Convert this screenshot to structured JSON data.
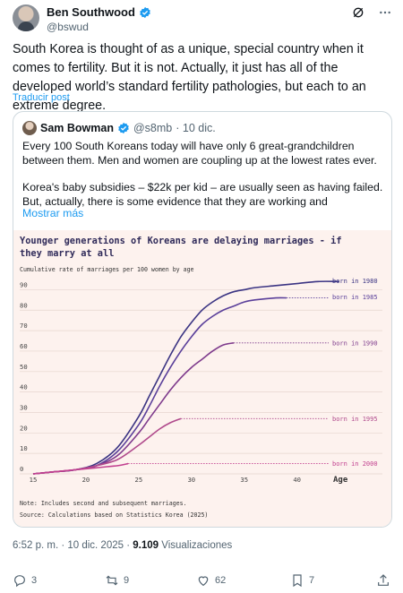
{
  "author": {
    "name": "Ben Southwood",
    "handle": "@bswud"
  },
  "header_icons": [
    "grok-icon",
    "more-icon"
  ],
  "tweet": {
    "text": "South Korea is thought of as a unique, special country when it comes to fertility. But it is not. Actually, it just has all of the developed world’s standard fertility pathologies, but each to an extreme degree.",
    "translate_label": "Traducir post"
  },
  "quote": {
    "name": "Sam Bowman",
    "handle": "@s8mb",
    "date": "· 10 dic.",
    "paragraph1": "Every 100 South Koreans today will have only 6 great-grandchildren between them. Men and women are coupling up at the lowest rates ever.",
    "paragraph2": "Korea's baby subsidies – $22k per kid – are usually seen as having failed. But, actually, there is some evidence that they are working and",
    "show_more": "Mostrar más"
  },
  "chart_data": {
    "type": "line",
    "title_line1": "Younger generations of Koreans are delaying marriages - if",
    "title_line2": "they marry at all",
    "subtitle": "Cumulative rate of marriages per 100 women by age",
    "xlabel": "Age",
    "xlim": [
      15,
      43
    ],
    "ylim": [
      0,
      95
    ],
    "xticks": [
      15,
      20,
      25,
      30,
      35,
      40
    ],
    "yticks": [
      0,
      10,
      20,
      30,
      40,
      50,
      60,
      70,
      80,
      90
    ],
    "note": "Note: Includes second and subsequent marriages.",
    "source": "Source: Calculations based on Statistics Korea (2025)",
    "series": [
      {
        "name": "born in 1980",
        "color": "#3b3483",
        "x": [
          15,
          17,
          19,
          21,
          23,
          25,
          26,
          27,
          28,
          29,
          30,
          31,
          32,
          33,
          34,
          35,
          36,
          38,
          40,
          42,
          44
        ],
        "y": [
          0,
          1,
          2,
          5,
          13,
          28,
          38,
          48,
          58,
          67,
          74,
          80,
          84,
          87,
          89,
          90,
          91,
          92,
          93,
          94,
          94
        ]
      },
      {
        "name": "born in 1985",
        "color": "#5a3f9a",
        "x": [
          15,
          17,
          19,
          21,
          23,
          25,
          26,
          27,
          28,
          29,
          30,
          31,
          32,
          33,
          34,
          35,
          36,
          38,
          39
        ],
        "y": [
          0,
          1,
          2,
          4,
          11,
          24,
          33,
          43,
          52,
          60,
          67,
          73,
          77,
          80,
          82,
          84,
          85,
          86,
          86
        ]
      },
      {
        "name": "born in 1990",
        "color": "#7e3a8c",
        "x": [
          15,
          17,
          19,
          21,
          23,
          25,
          26,
          27,
          28,
          29,
          30,
          31,
          32,
          33,
          34
        ],
        "y": [
          0,
          1,
          2,
          4,
          9,
          20,
          27,
          34,
          41,
          47,
          52,
          56,
          60,
          63,
          64
        ]
      },
      {
        "name": "born in 1995",
        "color": "#b04a8c",
        "x": [
          15,
          17,
          19,
          21,
          23,
          25,
          26,
          27,
          28,
          29
        ],
        "y": [
          0,
          1,
          2,
          4,
          7,
          14,
          18,
          22,
          25,
          27
        ]
      },
      {
        "name": "born in 2000",
        "color": "#c2408f",
        "x": [
          15,
          17,
          19,
          21,
          23,
          24
        ],
        "y": [
          0,
          1,
          2,
          3,
          4,
          5
        ]
      }
    ]
  },
  "post_meta": {
    "time": "6:52 p. m. · 10 dic. 2025 · ",
    "views_count": "9.109",
    "views_label": " Visualizaciones"
  },
  "actions": {
    "replies": "3",
    "reposts": "9",
    "likes": "62",
    "bookmarks": "7"
  }
}
